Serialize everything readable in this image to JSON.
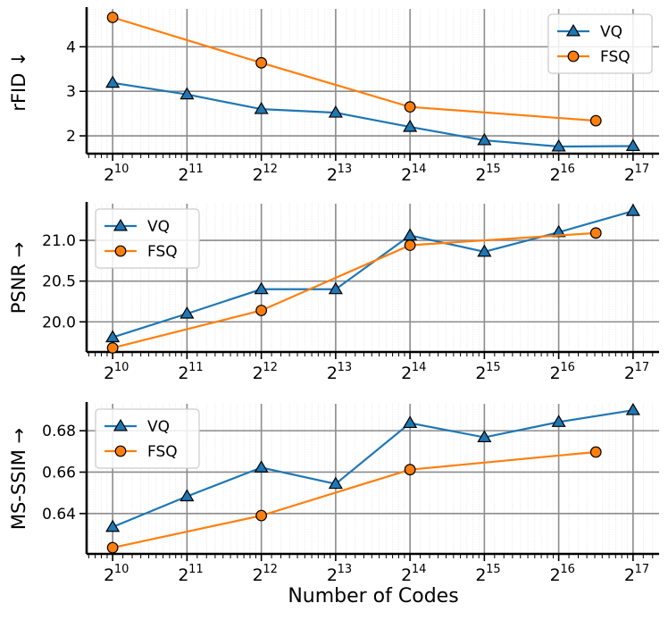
{
  "xlabel": "Number of Codes",
  "chart_data": [
    {
      "type": "line",
      "ylabel": "rFID ↓",
      "xscale": "log2",
      "xlim": [
        9.65,
        17.35
      ],
      "ylim": [
        1.6,
        4.85
      ],
      "xticks": [
        10,
        11,
        12,
        13,
        14,
        15,
        16,
        17
      ],
      "yticks": [
        2,
        3,
        4
      ],
      "grid": true,
      "legend_position": "top-right",
      "series": [
        {
          "name": "VQ",
          "color": "#1f77b4",
          "marker": "triangle",
          "x": [
            10,
            11,
            12,
            13,
            14,
            15,
            16,
            17
          ],
          "y": [
            3.19,
            2.93,
            2.6,
            2.52,
            2.2,
            1.9,
            1.76,
            1.77
          ]
        },
        {
          "name": "FSQ",
          "color": "#ff7f0e",
          "marker": "circle",
          "x": [
            10,
            12,
            14,
            16.5
          ],
          "y": [
            4.66,
            3.64,
            2.65,
            2.34
          ]
        }
      ]
    },
    {
      "type": "line",
      "ylabel": "PSNR →",
      "xscale": "log2",
      "xlim": [
        9.65,
        17.35
      ],
      "ylim": [
        19.63,
        21.45
      ],
      "xticks": [
        10,
        11,
        12,
        13,
        14,
        15,
        16,
        17
      ],
      "yticks": [
        20.0,
        20.5,
        21.0
      ],
      "grid": true,
      "legend_position": "top-left",
      "series": [
        {
          "name": "VQ",
          "color": "#1f77b4",
          "marker": "triangle",
          "x": [
            10,
            11,
            12,
            13,
            14,
            15,
            16,
            17
          ],
          "y": [
            19.81,
            20.1,
            20.4,
            20.4,
            21.06,
            20.86,
            21.1,
            21.36
          ]
        },
        {
          "name": "FSQ",
          "color": "#ff7f0e",
          "marker": "circle",
          "x": [
            10,
            12,
            14,
            16.5
          ],
          "y": [
            19.68,
            20.14,
            20.94,
            21.09
          ]
        }
      ]
    },
    {
      "type": "line",
      "ylabel": "MS-SSIM →",
      "xscale": "log2",
      "xlim": [
        9.65,
        17.35
      ],
      "ylim": [
        0.6205,
        0.693
      ],
      "xticks": [
        10,
        11,
        12,
        13,
        14,
        15,
        16,
        17
      ],
      "yticks": [
        0.64,
        0.66,
        0.68
      ],
      "grid": true,
      "legend_position": "top-left",
      "series": [
        {
          "name": "VQ",
          "color": "#1f77b4",
          "marker": "triangle",
          "x": [
            10,
            11,
            12,
            13,
            14,
            15,
            16,
            17
          ],
          "y": [
            0.6335,
            0.6483,
            0.6622,
            0.6543,
            0.6837,
            0.6768,
            0.6842,
            0.6899
          ]
        },
        {
          "name": "FSQ",
          "color": "#ff7f0e",
          "marker": "circle",
          "x": [
            10,
            12,
            14,
            16.5
          ],
          "y": [
            0.6235,
            0.639,
            0.6612,
            0.6697
          ]
        }
      ]
    }
  ]
}
